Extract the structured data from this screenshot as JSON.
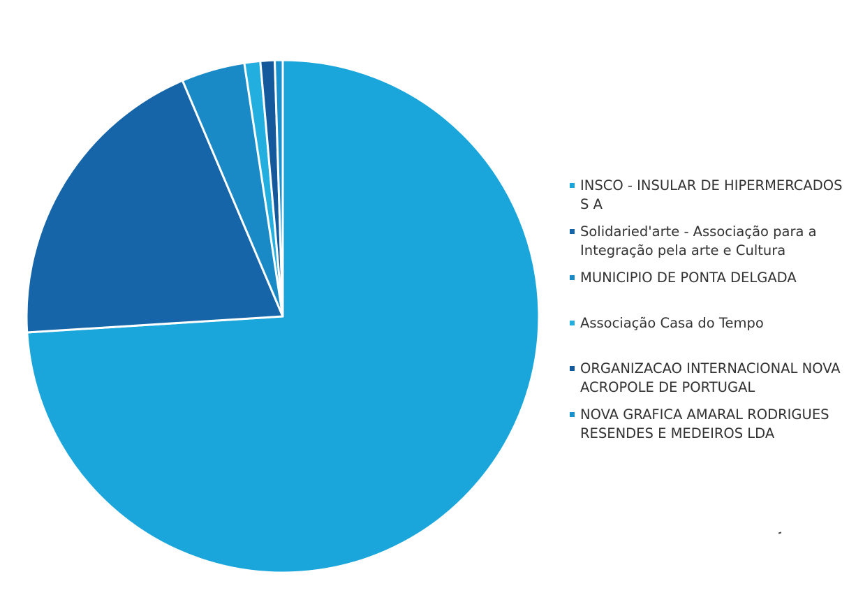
{
  "chart_data": {
    "type": "pie",
    "title": "",
    "legend_position": "right",
    "start_angle_deg": 90,
    "direction": "clockwise",
    "slices": [
      {
        "label": "INSCO - INSULAR DE HIPERMERCADOS S A",
        "value": 74.0,
        "color": "#1aa6db"
      },
      {
        "label": "Solidaried'arte - Associação para a Integração pela arte e Cultura",
        "value": 19.6,
        "color": "#1565a8"
      },
      {
        "label": "MUNICIPIO DE PONTA DELGADA",
        "value": 4.0,
        "color": "#1a8ac7"
      },
      {
        "label": "Associação Casa do Tempo",
        "value": 1.0,
        "color": "#23aee0"
      },
      {
        "label": "ORGANIZACAO INTERNACIONAL NOVA ACROPOLE DE PORTUGAL",
        "value": 0.9,
        "color": "#14599b"
      },
      {
        "label": "NOVA GRAFICA AMARAL RODRIGUES RESENDES E MEDEIROS LDA",
        "value": 0.5,
        "color": "#1891cc"
      }
    ]
  }
}
